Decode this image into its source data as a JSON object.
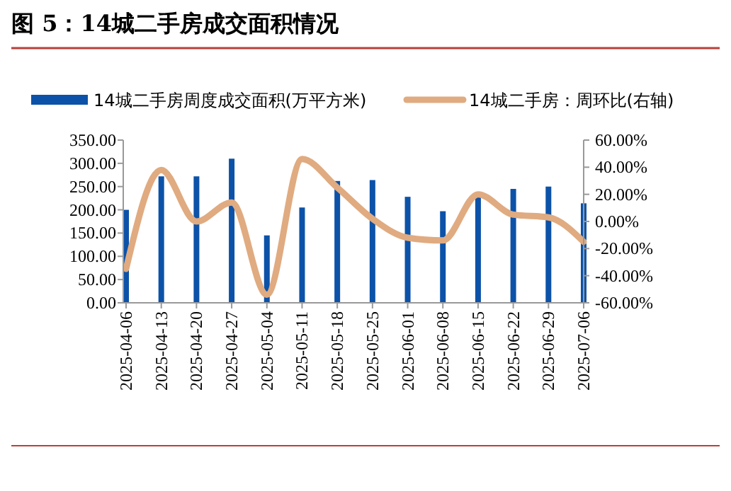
{
  "chart_data": {
    "type": "bar",
    "title": "图 5：14城二手房成交面积情况",
    "categories": [
      "2025-04-06",
      "2025-04-13",
      "2025-04-20",
      "2025-04-27",
      "2025-05-04",
      "2025-05-11",
      "2025-05-18",
      "2025-05-25",
      "2025-06-01",
      "2025-06-08",
      "2025-06-15",
      "2025-06-22",
      "2025-06-29",
      "2025-07-06"
    ],
    "series": [
      {
        "name": "14城二手房周度成交面积(万平方米)",
        "color": "#0c52a8",
        "values": [
          200,
          272,
          272,
          310,
          145,
          205,
          262,
          264,
          228,
          197,
          230,
          245,
          250,
          214
        ]
      },
      {
        "name": "14城二手房：周环比(右轴)",
        "type": "line",
        "axis": "y2",
        "color": "#e0ab80",
        "values": [
          -35,
          38,
          0,
          14,
          -54,
          46,
          25,
          2,
          -12,
          -14,
          20,
          5,
          3,
          -15
        ]
      }
    ],
    "ylim": [
      0,
      350
    ],
    "yticks": [
      {
        "value": 0,
        "label": "0.00"
      },
      {
        "value": 50,
        "label": "50.00"
      },
      {
        "value": 100,
        "label": "100.00"
      },
      {
        "value": 150,
        "label": "150.00"
      },
      {
        "value": 200,
        "label": "200.00"
      },
      {
        "value": 250,
        "label": "250.00"
      },
      {
        "value": 300,
        "label": "300.00"
      },
      {
        "value": 350,
        "label": "350.00"
      }
    ],
    "y2lim": [
      -60,
      60
    ],
    "y2ticks": [
      {
        "value": -60,
        "label": "-60.00%"
      },
      {
        "value": -40,
        "label": "-40.00%"
      },
      {
        "value": -20,
        "label": "-20.00%"
      },
      {
        "value": 0,
        "label": "0.00%"
      },
      {
        "value": 20,
        "label": "20.00%"
      },
      {
        "value": 40,
        "label": "40.00%"
      },
      {
        "value": 60,
        "label": "60.00%"
      }
    ],
    "legend": "top",
    "grid": false
  }
}
